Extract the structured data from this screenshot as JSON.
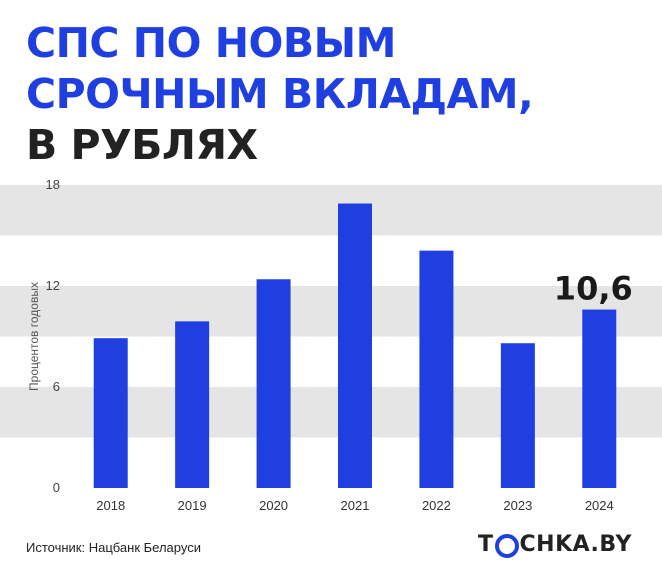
{
  "title": {
    "line1": "СПС ПО НОВЫМ",
    "line2": "СРОЧНЫМ ВКЛАДАМ,",
    "line3": "В РУБЛЯХ"
  },
  "source": "Источник: Нацбанк Беларуси",
  "logo": {
    "before": "T",
    "after": "CHKA.BY"
  },
  "colors": {
    "accent": "#1f3fe0",
    "band": "#e5e5e5",
    "text": "#222222"
  },
  "chart_data": {
    "type": "bar",
    "categories": [
      "2018",
      "2019",
      "2020",
      "2021",
      "2022",
      "2023",
      "2024"
    ],
    "values": [
      8.9,
      9.9,
      12.4,
      16.9,
      14.1,
      8.6,
      10.6
    ],
    "ylabel": "Процентов годовых",
    "ylim": [
      0,
      18
    ],
    "yticks": [
      "0",
      "6",
      "12",
      "18"
    ],
    "grid": "alternating bands",
    "highlight": {
      "category": "2024",
      "label": "10,6"
    }
  }
}
